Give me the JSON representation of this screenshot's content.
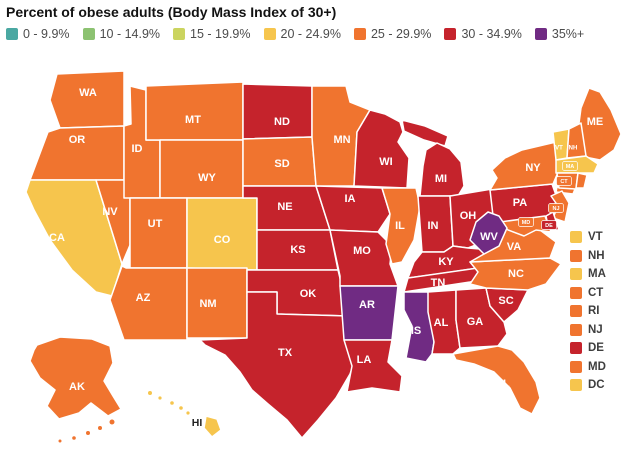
{
  "title": "Percent of obese adults (Body Mass Index of 30+)",
  "legend": [
    {
      "label": "0 - 9.9%",
      "color": "#4AA8A2"
    },
    {
      "label": "10 - 14.9%",
      "color": "#8CC271"
    },
    {
      "label": "15 - 19.9%",
      "color": "#CBD45F"
    },
    {
      "label": "20 - 24.9%",
      "color": "#F6C54D"
    },
    {
      "label": "25 - 29.9%",
      "color": "#F0742F"
    },
    {
      "label": "30 - 34.9%",
      "color": "#C5232C"
    },
    {
      "label": "35%+",
      "color": "#702B83"
    }
  ],
  "small_states_panel": [
    "VT",
    "NH",
    "MA",
    "CT",
    "RI",
    "NJ",
    "DE",
    "MD",
    "DC"
  ],
  "chart_data": {
    "type": "choropleth",
    "title": "Percent of obese adults (Body Mass Index of 30+)",
    "region": "United States, by state (plus DC)",
    "legend_position": "top",
    "bins": [
      "0 - 9.9%",
      "10 - 14.9%",
      "15 - 19.9%",
      "20 - 24.9%",
      "25 - 29.9%",
      "30 - 34.9%",
      "35%+"
    ],
    "bin_colors": [
      "#4AA8A2",
      "#8CC271",
      "#CBD45F",
      "#F6C54D",
      "#F0742F",
      "#C5232C",
      "#702B83"
    ],
    "values_by_state": {
      "AL": "30 - 34.9%",
      "AK": "25 - 29.9%",
      "AZ": "25 - 29.9%",
      "AR": "35%+",
      "CA": "20 - 24.9%",
      "CO": "20 - 24.9%",
      "CT": "25 - 29.9%",
      "DE": "30 - 34.9%",
      "DC": "20 - 24.9%",
      "FL": "25 - 29.9%",
      "GA": "30 - 34.9%",
      "HI": "20 - 24.9%",
      "ID": "25 - 29.9%",
      "IL": "25 - 29.9%",
      "IN": "30 - 34.9%",
      "IA": "30 - 34.9%",
      "KS": "30 - 34.9%",
      "KY": "30 - 34.9%",
      "LA": "30 - 34.9%",
      "ME": "25 - 29.9%",
      "MD": "25 - 29.9%",
      "MA": "20 - 24.9%",
      "MI": "30 - 34.9%",
      "MN": "25 - 29.9%",
      "MS": "35%+",
      "MO": "30 - 34.9%",
      "MT": "25 - 29.9%",
      "NE": "30 - 34.9%",
      "NV": "25 - 29.9%",
      "NH": "25 - 29.9%",
      "NJ": "25 - 29.9%",
      "NM": "25 - 29.9%",
      "NY": "25 - 29.9%",
      "NC": "25 - 29.9%",
      "ND": "30 - 34.9%",
      "OH": "30 - 34.9%",
      "OK": "30 - 34.9%",
      "OR": "25 - 29.9%",
      "PA": "30 - 34.9%",
      "RI": "25 - 29.9%",
      "SC": "30 - 34.9%",
      "SD": "25 - 29.9%",
      "TN": "30 - 34.9%",
      "TX": "30 - 34.9%",
      "UT": "25 - 29.9%",
      "VT": "20 - 24.9%",
      "VA": "25 - 29.9%",
      "WA": "25 - 29.9%",
      "WV": "35%+",
      "WI": "30 - 34.9%",
      "WY": "25 - 29.9%"
    }
  }
}
